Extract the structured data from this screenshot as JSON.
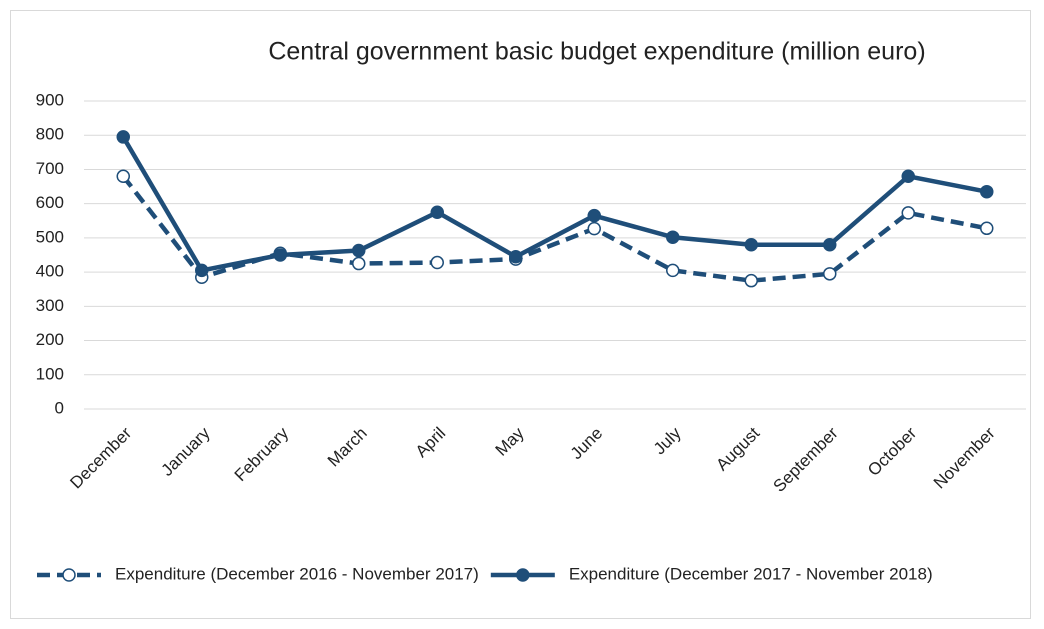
{
  "chart_data": {
    "type": "line",
    "title": "Central government basic budget expenditure (million euro)",
    "categories": [
      "December",
      "January",
      "February",
      "March",
      "April",
      "May",
      "June",
      "July",
      "August",
      "September",
      "October",
      "November"
    ],
    "series": [
      {
        "name": "Expenditure (December 2016 - November 2017)",
        "color": "#1f4e79",
        "style": "dashed",
        "marker": "open",
        "values": [
          680,
          385,
          455,
          425,
          428,
          438,
          527,
          405,
          375,
          395,
          573,
          528
        ]
      },
      {
        "name": "Expenditure (December 2017 - November 2018)",
        "color": "#1f4e79",
        "style": "solid",
        "marker": "filled",
        "values": [
          795,
          405,
          450,
          463,
          575,
          445,
          565,
          502,
          480,
          480,
          680,
          635
        ]
      }
    ],
    "ylim": [
      0,
      900
    ],
    "yticks": [
      0,
      100,
      200,
      300,
      400,
      500,
      600,
      700,
      800,
      900
    ],
    "grid": true,
    "legend": "bottom"
  }
}
